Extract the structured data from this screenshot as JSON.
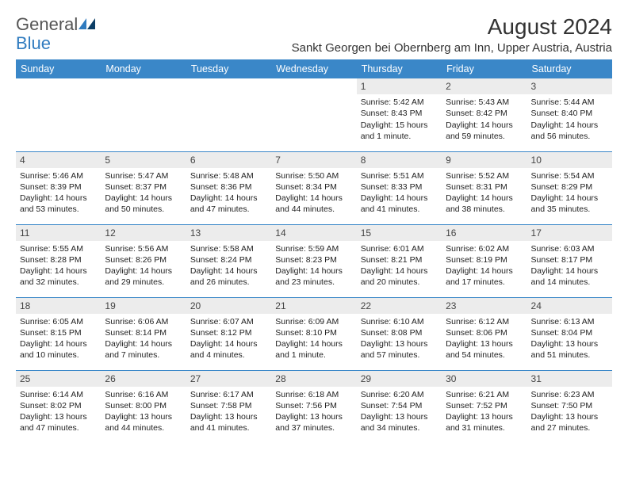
{
  "logo": {
    "text1": "General",
    "text2": "Blue"
  },
  "title": "August 2024",
  "location": "Sankt Georgen bei Obernberg am Inn, Upper Austria, Austria",
  "colors": {
    "header_bg": "#3a87c8",
    "header_text": "#ffffff",
    "daynum_bg": "#ececec",
    "row_divider": "#3a87c8",
    "logo_gray": "#7a7a7a",
    "logo_blue": "#2f7bbf"
  },
  "typography": {
    "title_fontsize": 28,
    "location_fontsize": 15,
    "weekday_fontsize": 12.5,
    "daynum_fontsize": 12,
    "body_fontsize": 10.5
  },
  "weekdays": [
    "Sunday",
    "Monday",
    "Tuesday",
    "Wednesday",
    "Thursday",
    "Friday",
    "Saturday"
  ],
  "weeks": [
    [
      null,
      null,
      null,
      null,
      {
        "n": "1",
        "sunrise": "5:42 AM",
        "sunset": "8:43 PM",
        "daylight": "15 hours and 1 minute."
      },
      {
        "n": "2",
        "sunrise": "5:43 AM",
        "sunset": "8:42 PM",
        "daylight": "14 hours and 59 minutes."
      },
      {
        "n": "3",
        "sunrise": "5:44 AM",
        "sunset": "8:40 PM",
        "daylight": "14 hours and 56 minutes."
      }
    ],
    [
      {
        "n": "4",
        "sunrise": "5:46 AM",
        "sunset": "8:39 PM",
        "daylight": "14 hours and 53 minutes."
      },
      {
        "n": "5",
        "sunrise": "5:47 AM",
        "sunset": "8:37 PM",
        "daylight": "14 hours and 50 minutes."
      },
      {
        "n": "6",
        "sunrise": "5:48 AM",
        "sunset": "8:36 PM",
        "daylight": "14 hours and 47 minutes."
      },
      {
        "n": "7",
        "sunrise": "5:50 AM",
        "sunset": "8:34 PM",
        "daylight": "14 hours and 44 minutes."
      },
      {
        "n": "8",
        "sunrise": "5:51 AM",
        "sunset": "8:33 PM",
        "daylight": "14 hours and 41 minutes."
      },
      {
        "n": "9",
        "sunrise": "5:52 AM",
        "sunset": "8:31 PM",
        "daylight": "14 hours and 38 minutes."
      },
      {
        "n": "10",
        "sunrise": "5:54 AM",
        "sunset": "8:29 PM",
        "daylight": "14 hours and 35 minutes."
      }
    ],
    [
      {
        "n": "11",
        "sunrise": "5:55 AM",
        "sunset": "8:28 PM",
        "daylight": "14 hours and 32 minutes."
      },
      {
        "n": "12",
        "sunrise": "5:56 AM",
        "sunset": "8:26 PM",
        "daylight": "14 hours and 29 minutes."
      },
      {
        "n": "13",
        "sunrise": "5:58 AM",
        "sunset": "8:24 PM",
        "daylight": "14 hours and 26 minutes."
      },
      {
        "n": "14",
        "sunrise": "5:59 AM",
        "sunset": "8:23 PM",
        "daylight": "14 hours and 23 minutes."
      },
      {
        "n": "15",
        "sunrise": "6:01 AM",
        "sunset": "8:21 PM",
        "daylight": "14 hours and 20 minutes."
      },
      {
        "n": "16",
        "sunrise": "6:02 AM",
        "sunset": "8:19 PM",
        "daylight": "14 hours and 17 minutes."
      },
      {
        "n": "17",
        "sunrise": "6:03 AM",
        "sunset": "8:17 PM",
        "daylight": "14 hours and 14 minutes."
      }
    ],
    [
      {
        "n": "18",
        "sunrise": "6:05 AM",
        "sunset": "8:15 PM",
        "daylight": "14 hours and 10 minutes."
      },
      {
        "n": "19",
        "sunrise": "6:06 AM",
        "sunset": "8:14 PM",
        "daylight": "14 hours and 7 minutes."
      },
      {
        "n": "20",
        "sunrise": "6:07 AM",
        "sunset": "8:12 PM",
        "daylight": "14 hours and 4 minutes."
      },
      {
        "n": "21",
        "sunrise": "6:09 AM",
        "sunset": "8:10 PM",
        "daylight": "14 hours and 1 minute."
      },
      {
        "n": "22",
        "sunrise": "6:10 AM",
        "sunset": "8:08 PM",
        "daylight": "13 hours and 57 minutes."
      },
      {
        "n": "23",
        "sunrise": "6:12 AM",
        "sunset": "8:06 PM",
        "daylight": "13 hours and 54 minutes."
      },
      {
        "n": "24",
        "sunrise": "6:13 AM",
        "sunset": "8:04 PM",
        "daylight": "13 hours and 51 minutes."
      }
    ],
    [
      {
        "n": "25",
        "sunrise": "6:14 AM",
        "sunset": "8:02 PM",
        "daylight": "13 hours and 47 minutes."
      },
      {
        "n": "26",
        "sunrise": "6:16 AM",
        "sunset": "8:00 PM",
        "daylight": "13 hours and 44 minutes."
      },
      {
        "n": "27",
        "sunrise": "6:17 AM",
        "sunset": "7:58 PM",
        "daylight": "13 hours and 41 minutes."
      },
      {
        "n": "28",
        "sunrise": "6:18 AM",
        "sunset": "7:56 PM",
        "daylight": "13 hours and 37 minutes."
      },
      {
        "n": "29",
        "sunrise": "6:20 AM",
        "sunset": "7:54 PM",
        "daylight": "13 hours and 34 minutes."
      },
      {
        "n": "30",
        "sunrise": "6:21 AM",
        "sunset": "7:52 PM",
        "daylight": "13 hours and 31 minutes."
      },
      {
        "n": "31",
        "sunrise": "6:23 AM",
        "sunset": "7:50 PM",
        "daylight": "13 hours and 27 minutes."
      }
    ]
  ],
  "labels": {
    "sunrise": "Sunrise: ",
    "sunset": "Sunset: ",
    "daylight": "Daylight: "
  }
}
